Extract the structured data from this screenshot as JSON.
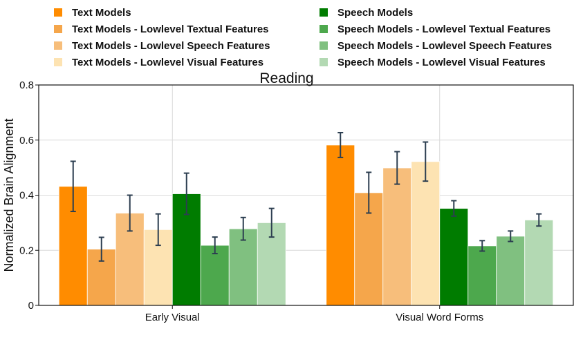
{
  "chart_data": {
    "type": "bar",
    "title": "Reading",
    "xlabel": "",
    "ylabel": "Normalized Brain Alignment",
    "ylim": [
      0,
      0.8
    ],
    "yticks": [
      "0",
      "0.2",
      "0.4",
      "0.6",
      "0.8"
    ],
    "grid": true,
    "legend_position": "top",
    "categories": [
      "Early Visual",
      "Visual Word Forms"
    ],
    "series": [
      {
        "name": "Text Models",
        "color": "#FF8C00",
        "values": [
          0.432,
          0.582
        ],
        "errors": [
          0.091,
          0.045
        ]
      },
      {
        "name": "Text Models - Lowlevel Textual Features",
        "color": "#F5A64B",
        "values": [
          0.204,
          0.409
        ],
        "errors": [
          0.043,
          0.074
        ]
      },
      {
        "name": "Text Models - Lowlevel Speech Features",
        "color": "#F7BE7B",
        "values": [
          0.335,
          0.499
        ],
        "errors": [
          0.065,
          0.059
        ]
      },
      {
        "name": "Text Models - Lowlevel Visual Features",
        "color": "#FDE3B2",
        "values": [
          0.275,
          0.522
        ],
        "errors": [
          0.057,
          0.071
        ]
      },
      {
        "name": "Speech Models",
        "color": "#007C00",
        "values": [
          0.405,
          0.352
        ],
        "errors": [
          0.075,
          0.028
        ]
      },
      {
        "name": "Speech Models - Lowlevel Textual Features",
        "color": "#4DA84D",
        "values": [
          0.218,
          0.216
        ],
        "errors": [
          0.03,
          0.019
        ]
      },
      {
        "name": "Speech Models - Lowlevel Speech Features",
        "color": "#80C080",
        "values": [
          0.278,
          0.251
        ],
        "errors": [
          0.041,
          0.019
        ]
      },
      {
        "name": "Speech Models - Lowlevel Visual Features",
        "color": "#B3D9B3",
        "values": [
          0.3,
          0.31
        ],
        "errors": [
          0.052,
          0.022
        ]
      }
    ]
  }
}
